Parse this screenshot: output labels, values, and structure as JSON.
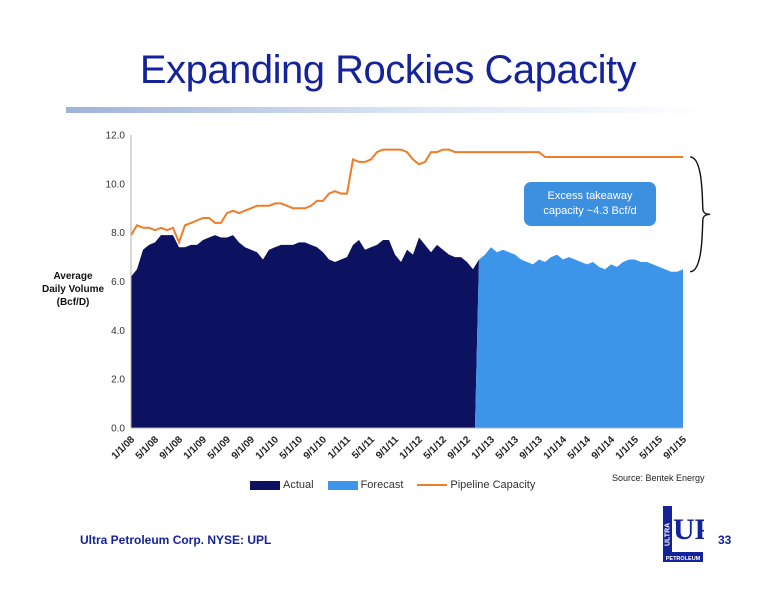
{
  "slide": {
    "title": "Expanding Rockies Capacity",
    "footer_company": "Ultra Petroleum Corp. NYSE: UPL",
    "page_number": "33",
    "source": "Source: Bentek Energy",
    "logo": {
      "word_top": "ULTRA",
      "word_mark": "UP",
      "word_bottom": "PETROLEUM"
    }
  },
  "colors": {
    "title": "#14239a",
    "actual": "#0c1160",
    "forecast": "#3d95ea",
    "pipeline": "#ee7d2a",
    "callout": "#3d8fe0"
  },
  "chart_data": {
    "type": "area",
    "ylabel_lines": [
      "Average",
      "Daily Volume",
      "(Bcf/D)"
    ],
    "ylim": [
      0,
      12
    ],
    "yticks": [
      "0.0",
      "2.0",
      "4.0",
      "6.0",
      "8.0",
      "10.0",
      "12.0"
    ],
    "x_ticks": [
      "1/1/08",
      "5/1/08",
      "9/1/08",
      "1/1/09",
      "5/1/09",
      "9/1/09",
      "1/1/10",
      "5/1/10",
      "9/1/10",
      "1/1/11",
      "5/1/11",
      "9/1/11",
      "1/1/12",
      "5/1/12",
      "9/1/12",
      "1/1/13",
      "5/1/13",
      "9/1/13",
      "1/1/14",
      "5/1/14",
      "9/1/14",
      "1/1/15",
      "5/1/15",
      "9/1/15"
    ],
    "grid": false,
    "legend": "bottom",
    "series": [
      {
        "name": "Actual",
        "style": "area",
        "points": [
          [
            0,
            6.2
          ],
          [
            1,
            6.5
          ],
          [
            2,
            7.3
          ],
          [
            3,
            7.5
          ],
          [
            4,
            7.6
          ],
          [
            5,
            7.9
          ],
          [
            6,
            7.9
          ],
          [
            7,
            7.9
          ],
          [
            8,
            7.4
          ],
          [
            9,
            7.4
          ],
          [
            10,
            7.5
          ],
          [
            11,
            7.5
          ],
          [
            12,
            7.7
          ],
          [
            13,
            7.8
          ],
          [
            14,
            7.9
          ],
          [
            15,
            7.8
          ],
          [
            16,
            7.8
          ],
          [
            17,
            7.9
          ],
          [
            18,
            7.6
          ],
          [
            19,
            7.4
          ],
          [
            20,
            7.3
          ],
          [
            21,
            7.2
          ],
          [
            22,
            6.9
          ],
          [
            23,
            7.3
          ],
          [
            24,
            7.4
          ],
          [
            25,
            7.5
          ],
          [
            26,
            7.5
          ],
          [
            27,
            7.5
          ],
          [
            28,
            7.6
          ],
          [
            29,
            7.6
          ],
          [
            30,
            7.5
          ],
          [
            31,
            7.4
          ],
          [
            32,
            7.2
          ],
          [
            33,
            6.9
          ],
          [
            34,
            6.8
          ],
          [
            35,
            6.9
          ],
          [
            36,
            7.0
          ],
          [
            37,
            7.5
          ],
          [
            38,
            7.7
          ],
          [
            39,
            7.3
          ],
          [
            40,
            7.4
          ],
          [
            41,
            7.5
          ],
          [
            42,
            7.7
          ],
          [
            43,
            7.7
          ],
          [
            44,
            7.1
          ],
          [
            45,
            6.8
          ],
          [
            46,
            7.3
          ],
          [
            47,
            7.1
          ],
          [
            48,
            7.8
          ],
          [
            49,
            7.5
          ],
          [
            50,
            7.2
          ],
          [
            51,
            7.5
          ],
          [
            52,
            7.3
          ],
          [
            53,
            7.1
          ],
          [
            54,
            7.0
          ],
          [
            55,
            7.0
          ],
          [
            56,
            6.8
          ],
          [
            57,
            6.5
          ],
          [
            58,
            6.9
          ]
        ]
      },
      {
        "name": "Forecast",
        "style": "area",
        "points": [
          [
            58,
            6.9
          ],
          [
            59,
            7.1
          ],
          [
            60,
            7.4
          ],
          [
            61,
            7.2
          ],
          [
            62,
            7.3
          ],
          [
            63,
            7.2
          ],
          [
            64,
            7.1
          ],
          [
            65,
            6.9
          ],
          [
            66,
            6.8
          ],
          [
            67,
            6.7
          ],
          [
            68,
            6.9
          ],
          [
            69,
            6.8
          ],
          [
            70,
            7.0
          ],
          [
            71,
            7.1
          ],
          [
            72,
            6.9
          ],
          [
            73,
            7.0
          ],
          [
            74,
            6.9
          ],
          [
            75,
            6.8
          ],
          [
            76,
            6.7
          ],
          [
            77,
            6.8
          ],
          [
            78,
            6.6
          ],
          [
            79,
            6.5
          ],
          [
            80,
            6.7
          ],
          [
            81,
            6.6
          ],
          [
            82,
            6.8
          ],
          [
            83,
            6.9
          ],
          [
            84,
            6.9
          ],
          [
            85,
            6.8
          ],
          [
            86,
            6.8
          ],
          [
            87,
            6.7
          ],
          [
            88,
            6.6
          ],
          [
            89,
            6.5
          ],
          [
            90,
            6.4
          ],
          [
            91,
            6.4
          ],
          [
            92,
            6.5
          ]
        ]
      },
      {
        "name": "Pipeline Capacity",
        "style": "line",
        "points": [
          [
            0,
            7.9
          ],
          [
            1,
            8.3
          ],
          [
            2,
            8.2
          ],
          [
            3,
            8.2
          ],
          [
            4,
            8.1
          ],
          [
            5,
            8.2
          ],
          [
            6,
            8.1
          ],
          [
            7,
            8.2
          ],
          [
            8,
            7.6
          ],
          [
            9,
            8.3
          ],
          [
            10,
            8.4
          ],
          [
            11,
            8.5
          ],
          [
            12,
            8.6
          ],
          [
            13,
            8.6
          ],
          [
            14,
            8.4
          ],
          [
            15,
            8.4
          ],
          [
            16,
            8.8
          ],
          [
            17,
            8.9
          ],
          [
            18,
            8.8
          ],
          [
            19,
            8.9
          ],
          [
            20,
            9.0
          ],
          [
            21,
            9.1
          ],
          [
            22,
            9.1
          ],
          [
            23,
            9.1
          ],
          [
            24,
            9.2
          ],
          [
            25,
            9.2
          ],
          [
            26,
            9.1
          ],
          [
            27,
            9.0
          ],
          [
            28,
            9.0
          ],
          [
            29,
            9.0
          ],
          [
            30,
            9.1
          ],
          [
            31,
            9.3
          ],
          [
            32,
            9.3
          ],
          [
            33,
            9.6
          ],
          [
            34,
            9.7
          ],
          [
            35,
            9.6
          ],
          [
            36,
            9.6
          ],
          [
            37,
            11.0
          ],
          [
            38,
            10.9
          ],
          [
            39,
            10.9
          ],
          [
            40,
            11.0
          ],
          [
            41,
            11.3
          ],
          [
            42,
            11.4
          ],
          [
            43,
            11.4
          ],
          [
            44,
            11.4
          ],
          [
            45,
            11.4
          ],
          [
            46,
            11.3
          ],
          [
            47,
            11.0
          ],
          [
            48,
            10.8
          ],
          [
            49,
            10.9
          ],
          [
            50,
            11.3
          ],
          [
            51,
            11.3
          ],
          [
            52,
            11.4
          ],
          [
            53,
            11.4
          ],
          [
            54,
            11.3
          ],
          [
            55,
            11.3
          ],
          [
            56,
            11.3
          ],
          [
            57,
            11.3
          ],
          [
            58,
            11.3
          ],
          [
            59,
            11.3
          ],
          [
            60,
            11.3
          ],
          [
            61,
            11.3
          ],
          [
            62,
            11.3
          ],
          [
            63,
            11.3
          ],
          [
            64,
            11.3
          ],
          [
            65,
            11.3
          ],
          [
            66,
            11.3
          ],
          [
            67,
            11.3
          ],
          [
            68,
            11.3
          ],
          [
            69,
            11.1
          ],
          [
            70,
            11.1
          ],
          [
            71,
            11.1
          ],
          [
            72,
            11.1
          ],
          [
            73,
            11.1
          ],
          [
            74,
            11.1
          ],
          [
            75,
            11.1
          ],
          [
            76,
            11.1
          ],
          [
            77,
            11.1
          ],
          [
            78,
            11.1
          ],
          [
            79,
            11.1
          ],
          [
            80,
            11.1
          ],
          [
            81,
            11.1
          ],
          [
            82,
            11.1
          ],
          [
            83,
            11.1
          ],
          [
            84,
            11.1
          ],
          [
            85,
            11.1
          ],
          [
            86,
            11.1
          ],
          [
            87,
            11.1
          ],
          [
            88,
            11.1
          ],
          [
            89,
            11.1
          ],
          [
            90,
            11.1
          ],
          [
            91,
            11.1
          ],
          [
            92,
            11.1
          ]
        ]
      }
    ],
    "annotations": [
      {
        "text_line1": "Excess takeaway",
        "text_line2": "capacity ~4.3 Bcf/d"
      }
    ]
  }
}
